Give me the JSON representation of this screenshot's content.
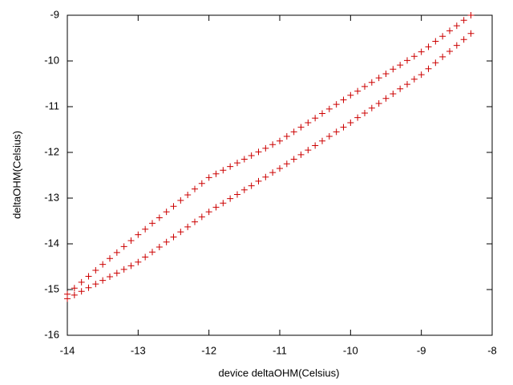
{
  "chart_data": {
    "type": "scatter",
    "xlabel": "device deltaOHM(Celsius)",
    "ylabel": "deltaOHM(Celsius)",
    "xlim": [
      -14,
      -8
    ],
    "ylim": [
      -16,
      -9
    ],
    "xticks": [
      -14,
      -13,
      -12,
      -11,
      -10,
      -9,
      -8
    ],
    "yticks": [
      -16,
      -15,
      -14,
      -13,
      -12,
      -11,
      -10,
      -9
    ],
    "marker": "+",
    "series": [
      {
        "color": "#cc0000",
        "x": [
          -14.0,
          -13.9,
          -13.8,
          -13.7,
          -13.6,
          -13.5,
          -13.4,
          -13.3,
          -13.2,
          -13.1,
          -13.0,
          -12.9,
          -12.8,
          -12.7,
          -12.6,
          -12.5,
          -12.4,
          -12.3,
          -12.2,
          -12.1,
          -12.0,
          -11.9,
          -11.8,
          -11.7,
          -11.6,
          -11.5,
          -11.4,
          -11.3,
          -11.2,
          -11.1,
          -11.0,
          -10.9,
          -10.8,
          -10.7,
          -10.6,
          -10.5,
          -10.4,
          -10.3,
          -10.2,
          -10.1,
          -10.0,
          -9.9,
          -9.8,
          -9.7,
          -9.6,
          -9.5,
          -9.4,
          -9.3,
          -9.2,
          -9.1,
          -9.0,
          -8.9,
          -8.8,
          -8.7,
          -8.6,
          -8.5,
          -8.4,
          -8.3
        ],
        "values": [
          -15.1,
          -14.97,
          -14.84,
          -14.71,
          -14.58,
          -14.45,
          -14.32,
          -14.19,
          -14.06,
          -13.93,
          -13.8,
          -13.68,
          -13.55,
          -13.43,
          -13.3,
          -13.18,
          -13.05,
          -12.93,
          -12.8,
          -12.68,
          -12.55,
          -12.47,
          -12.39,
          -12.31,
          -12.23,
          -12.15,
          -12.07,
          -11.99,
          -11.91,
          -11.83,
          -11.75,
          -11.65,
          -11.55,
          -11.45,
          -11.35,
          -11.25,
          -11.15,
          -11.05,
          -10.95,
          -10.85,
          -10.75,
          -10.66,
          -10.56,
          -10.47,
          -10.37,
          -10.28,
          -10.18,
          -10.09,
          -9.99,
          -9.9,
          -9.8,
          -9.69,
          -9.57,
          -9.46,
          -9.34,
          -9.23,
          -9.11,
          -9.0
        ]
      },
      {
        "color": "#cc0000",
        "x": [
          -14.0,
          -13.9,
          -13.8,
          -13.7,
          -13.6,
          -13.5,
          -13.4,
          -13.3,
          -13.2,
          -13.1,
          -13.0,
          -12.9,
          -12.8,
          -12.7,
          -12.6,
          -12.5,
          -12.4,
          -12.3,
          -12.2,
          -12.1,
          -12.0,
          -11.9,
          -11.8,
          -11.7,
          -11.6,
          -11.5,
          -11.4,
          -11.3,
          -11.2,
          -11.1,
          -11.0,
          -10.9,
          -10.8,
          -10.7,
          -10.6,
          -10.5,
          -10.4,
          -10.3,
          -10.2,
          -10.1,
          -10.0,
          -9.9,
          -9.8,
          -9.7,
          -9.6,
          -9.5,
          -9.4,
          -9.3,
          -9.2,
          -9.1,
          -9.0,
          -8.9,
          -8.8,
          -8.7,
          -8.6,
          -8.5,
          -8.4,
          -8.3
        ],
        "values": [
          -15.2,
          -15.12,
          -15.04,
          -14.96,
          -14.88,
          -14.8,
          -14.72,
          -14.64,
          -14.56,
          -14.48,
          -14.4,
          -14.29,
          -14.18,
          -14.07,
          -13.96,
          -13.85,
          -13.74,
          -13.63,
          -13.52,
          -13.41,
          -13.3,
          -13.2,
          -13.11,
          -13.01,
          -12.92,
          -12.82,
          -12.73,
          -12.63,
          -12.54,
          -12.44,
          -12.35,
          -12.25,
          -12.15,
          -12.05,
          -11.95,
          -11.85,
          -11.75,
          -11.65,
          -11.55,
          -11.45,
          -11.35,
          -11.24,
          -11.14,
          -11.03,
          -10.93,
          -10.82,
          -10.72,
          -10.61,
          -10.51,
          -10.4,
          -10.3,
          -10.17,
          -10.04,
          -9.91,
          -9.79,
          -9.66,
          -9.53,
          -9.4
        ]
      }
    ]
  }
}
